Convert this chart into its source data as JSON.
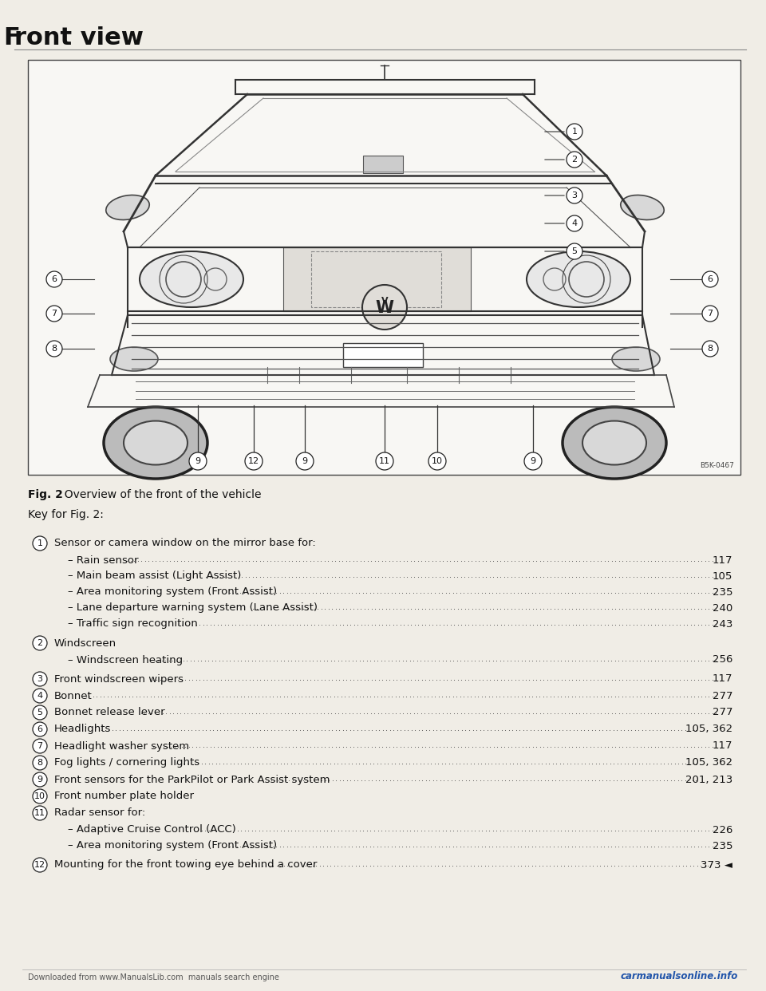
{
  "title_prefix": "F",
  "title_suffix": "ront view",
  "fig_caption_bold": "Fig. 2",
  "fig_caption_rest": "  Overview of the front of the vehicle",
  "key_header": "Key for Fig. 2:",
  "bg_color": "#f0ede6",
  "diagram_bg": "#f8f7f4",
  "text_color": "#1a1a1a",
  "entries": [
    {
      "num": "1",
      "text": "Sensor or camera window on the mirror base for:",
      "page": "",
      "dots": false,
      "sub_items": [
        {
          "text": "Rain sensor",
          "dots": true,
          "page": "117"
        },
        {
          "text": "Main beam assist (Light Assist)",
          "dots": true,
          "page": "105"
        },
        {
          "text": "Area monitoring system (Front Assist)",
          "dots": true,
          "page": "235"
        },
        {
          "text": "Lane departure warning system (Lane Assist)",
          "dots": true,
          "page": "240"
        },
        {
          "text": "Traffic sign recognition",
          "dots": true,
          "page": "243"
        }
      ]
    },
    {
      "num": "2",
      "text": "Windscreen",
      "page": "",
      "dots": false,
      "sub_items": [
        {
          "text": "Windscreen heating",
          "dots": true,
          "page": "256"
        }
      ]
    },
    {
      "num": "3",
      "text": "Front windscreen wipers",
      "dots": true,
      "page": "117",
      "sub_items": []
    },
    {
      "num": "4",
      "text": "Bonnet",
      "dots": true,
      "page": "277",
      "sub_items": []
    },
    {
      "num": "5",
      "text": "Bonnet release lever",
      "dots": true,
      "page": "277",
      "sub_items": []
    },
    {
      "num": "6",
      "text": "Headlights",
      "dots": true,
      "page": "105, 362",
      "sub_items": []
    },
    {
      "num": "7",
      "text": "Headlight washer system",
      "dots": true,
      "page": "117",
      "sub_items": []
    },
    {
      "num": "8",
      "text": "Fog lights / cornering lights",
      "dots": true,
      "page": "105, 362",
      "sub_items": []
    },
    {
      "num": "9",
      "text": "Front sensors for the ParkPilot or Park Assist system",
      "dots": true,
      "page": "201, 213",
      "sub_items": []
    },
    {
      "num": "10",
      "text": "Front number plate holder",
      "page": "",
      "dots": false,
      "sub_items": []
    },
    {
      "num": "11",
      "text": "Radar sensor for:",
      "page": "",
      "dots": false,
      "sub_items": [
        {
          "text": "Adaptive Cruise Control (ACC)",
          "dots": true,
          "page": "226"
        },
        {
          "text": "Area monitoring system (Front Assist)",
          "dots": true,
          "page": "235"
        }
      ]
    },
    {
      "num": "12",
      "text": "Mounting for the front towing eye behind a cover",
      "dots": true,
      "page": "373 ◄",
      "sub_items": []
    }
  ],
  "footer_left": "Downloaded from www.ManualsLib.com  manuals search engine",
  "footer_right": "carmanualsonline.info",
  "image_ref_code": "B5K-0467"
}
